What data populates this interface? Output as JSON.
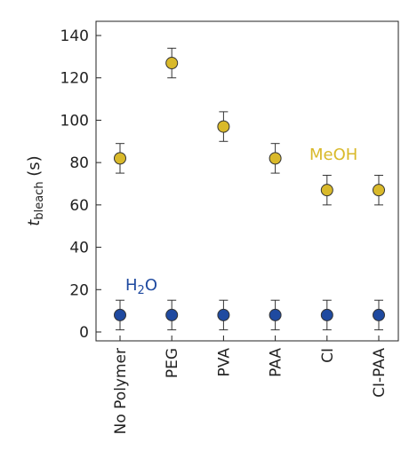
{
  "chart_data": {
    "type": "scatter",
    "title": "",
    "xlabel": "",
    "ylabel": {
      "main": "t",
      "subscript": "bleach",
      "suffix": " (s)"
    },
    "ylim": [
      0,
      140
    ],
    "yticks": [
      0,
      20,
      40,
      60,
      80,
      100,
      120,
      140
    ],
    "categories": [
      "No Polymer",
      "PEG",
      "PVA",
      "PAA",
      "CI",
      "CI-PAA"
    ],
    "series": [
      {
        "name": "MeOH",
        "color": "#d9b92a",
        "values": [
          82,
          127,
          97,
          82,
          67,
          67
        ],
        "errors": [
          7,
          7,
          7,
          7,
          7,
          7
        ]
      },
      {
        "name": "H2O",
        "color": "#1f4aa0",
        "values": [
          8,
          8,
          8,
          8,
          8,
          8
        ],
        "errors": [
          7,
          7,
          7,
          7,
          7,
          7
        ]
      }
    ],
    "annotations": [
      {
        "series": "MeOH",
        "text": "MeOH",
        "color": "#d9b92a"
      },
      {
        "series": "H2O",
        "text": "H",
        "subscript": "2",
        "suffix": "O",
        "color": "#1f4aa0"
      }
    ],
    "grid": false,
    "legend": "none"
  }
}
